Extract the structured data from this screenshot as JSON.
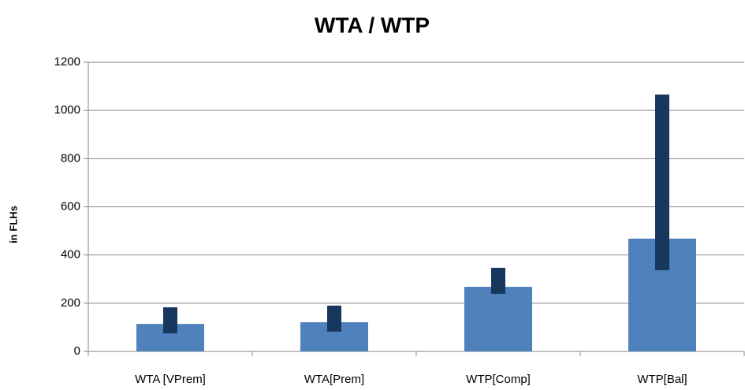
{
  "chart_data": {
    "type": "bar-range",
    "title": "WTA / WTP",
    "y_label": "in FLHs",
    "categories": [
      "WTA [VPrem]",
      "WTA[Prem]",
      "WTP[Comp]",
      "WTP[Bal]"
    ],
    "values": [
      114,
      121,
      268,
      468
    ],
    "color": "#4f81bd",
    "low": [
      75,
      82,
      239,
      337
    ],
    "high": [
      183,
      190,
      347,
      1066
    ],
    "range_color": "#17375e",
    "ylim": [
      0,
      1200
    ],
    "yticks": [
      0,
      200,
      400,
      600,
      800,
      1000,
      1200
    ],
    "grid": true
  }
}
